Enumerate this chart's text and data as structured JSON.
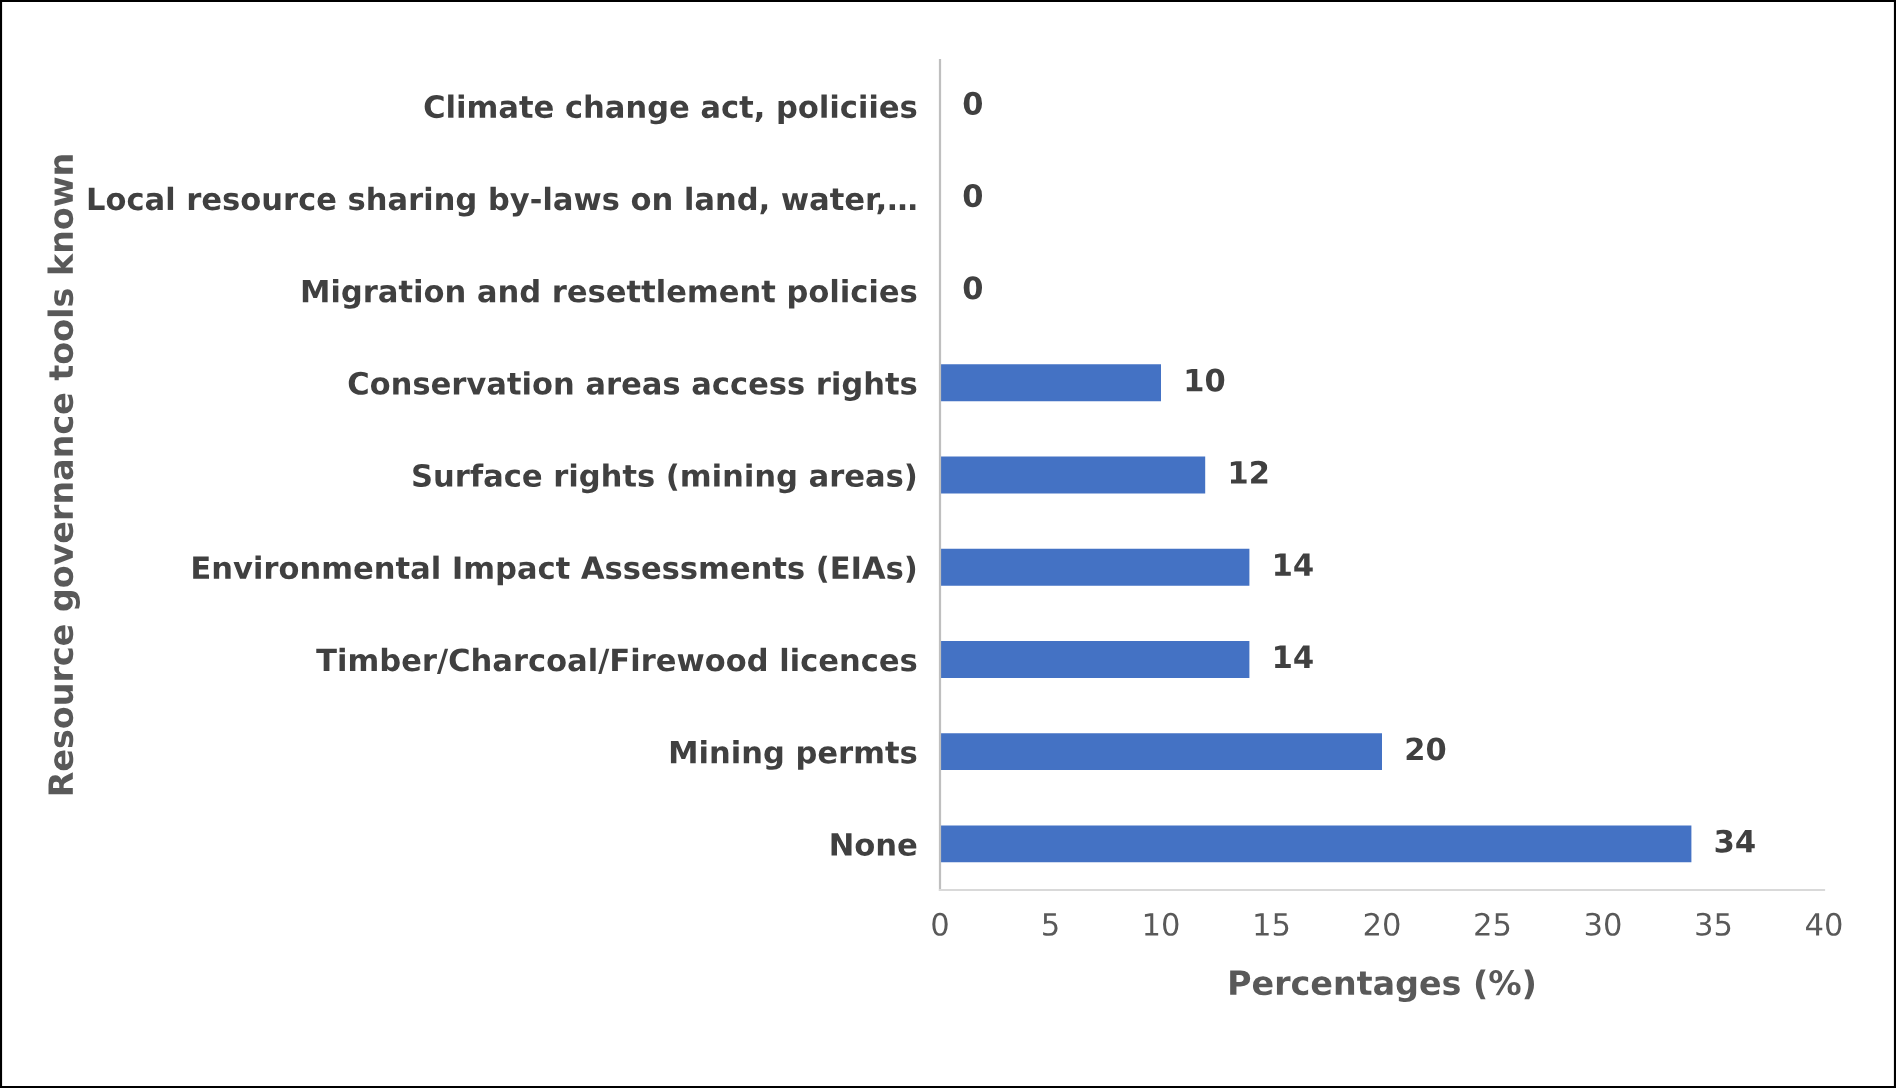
{
  "chart_data": {
    "type": "bar",
    "orientation": "horizontal",
    "xlabel": "Percentages (%)",
    "ylabel": "Resource governance tools known",
    "categories": [
      "Climate change act, policiies",
      "Local resource sharing by-laws on land, water,…",
      "Migration and resettlement policies",
      "Conservation areas access rights",
      "Surface rights (mining areas)",
      "Environmental Impact Assessments (EIAs)",
      "Timber/Charcoal/Firewood licences",
      "Mining permts",
      "None"
    ],
    "values": [
      0,
      0,
      0,
      10,
      12,
      14,
      14,
      20,
      34
    ],
    "color": "#4472c4",
    "xlim": [
      0,
      40
    ],
    "xticks": [
      0,
      5,
      10,
      15,
      20,
      25,
      30,
      35,
      40
    ],
    "grid": false,
    "data_labels": true
  }
}
